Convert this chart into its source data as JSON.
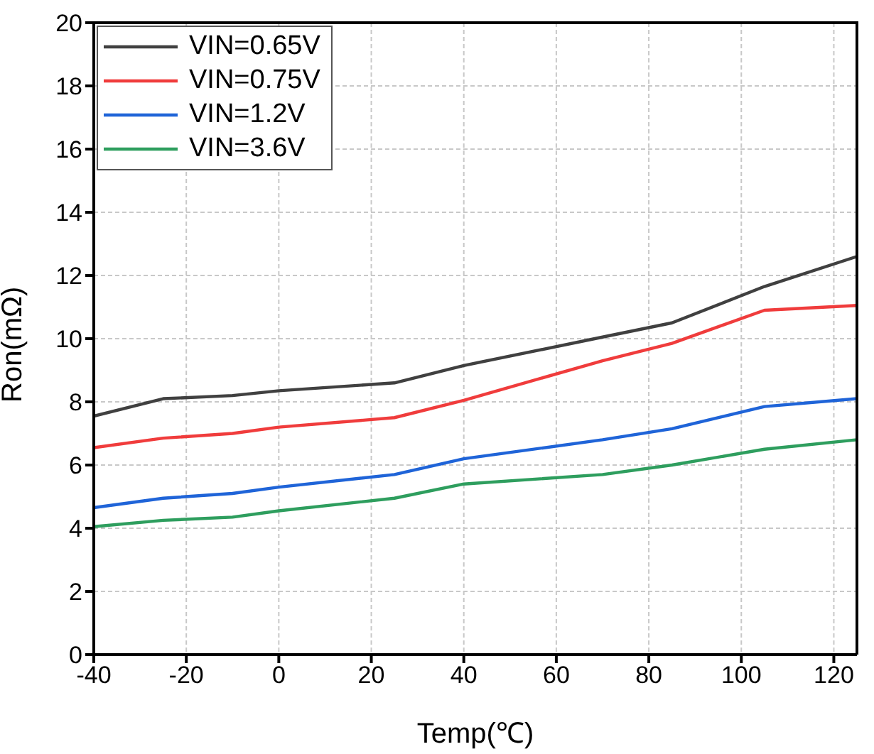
{
  "chart_data": {
    "type": "line",
    "xlabel": "Temp(℃)",
    "ylabel": "Ron(mΩ)",
    "x": [
      -40,
      -25,
      -10,
      0,
      25,
      40,
      70,
      85,
      105,
      125
    ],
    "series": [
      {
        "name": "VIN=0.65V",
        "color": "#404040",
        "values": [
          7.55,
          8.1,
          8.2,
          8.35,
          8.6,
          9.15,
          10.05,
          10.5,
          11.65,
          12.6
        ]
      },
      {
        "name": "VIN=0.75V",
        "color": "#f03c3c",
        "values": [
          6.55,
          6.85,
          7.0,
          7.2,
          7.5,
          8.05,
          9.3,
          9.85,
          10.9,
          11.05
        ]
      },
      {
        "name": "VIN=1.2V",
        "color": "#1f64d8",
        "values": [
          4.65,
          4.95,
          5.1,
          5.3,
          5.7,
          6.2,
          6.8,
          7.15,
          7.85,
          8.1
        ]
      },
      {
        "name": "VIN=3.6V",
        "color": "#2e9e5e",
        "values": [
          4.05,
          4.25,
          4.35,
          4.55,
          4.95,
          5.4,
          5.7,
          6.0,
          6.5,
          6.8
        ]
      }
    ],
    "xlim": [
      -40,
      125
    ],
    "xticks": [
      -40,
      -20,
      0,
      20,
      40,
      60,
      80,
      100,
      120
    ],
    "ylim": [
      0,
      20
    ],
    "yticks": [
      0,
      2,
      4,
      6,
      8,
      10,
      12,
      14,
      16,
      18,
      20
    ],
    "grid": true,
    "legend": "top left",
    "marker": "none",
    "line_style": "solid"
  }
}
